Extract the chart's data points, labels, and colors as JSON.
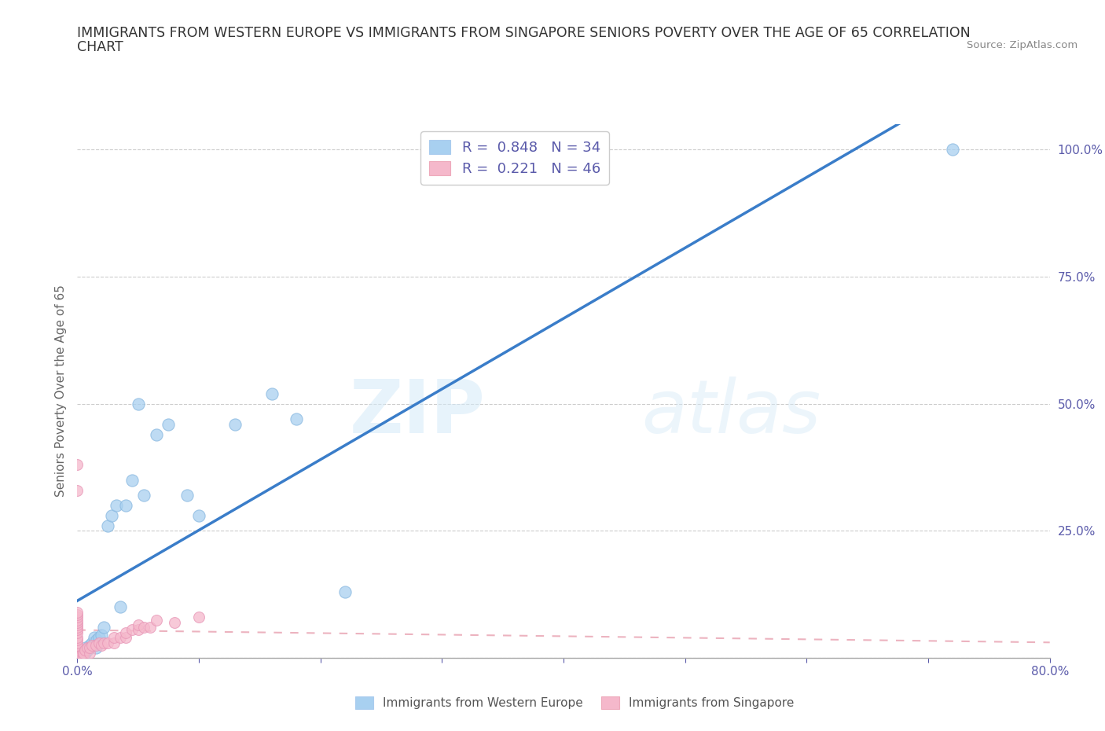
{
  "title_line1": "IMMIGRANTS FROM WESTERN EUROPE VS IMMIGRANTS FROM SINGAPORE SENIORS POVERTY OVER THE AGE OF 65 CORRELATION",
  "title_line2": "CHART",
  "source_text": "Source: ZipAtlas.com",
  "ylabel": "Seniors Poverty Over the Age of 65",
  "xlim": [
    0,
    0.8
  ],
  "ylim": [
    0,
    1.05
  ],
  "xtick_positions": [
    0.0,
    0.1,
    0.2,
    0.3,
    0.4,
    0.5,
    0.6,
    0.7,
    0.8
  ],
  "xticklabels": [
    "0.0%",
    "",
    "",
    "",
    "",
    "",
    "",
    "",
    "80.0%"
  ],
  "ytick_positions": [
    0.0,
    0.25,
    0.5,
    0.75,
    1.0
  ],
  "yticklabels": [
    "",
    "25.0%",
    "50.0%",
    "75.0%",
    "100.0%"
  ],
  "watermark_zip": "ZIP",
  "watermark_atlas": "atlas",
  "legend_label1": "R =  0.848   N = 34",
  "legend_label2": "R =  0.221   N = 46",
  "blue_color": "#a8d0f0",
  "pink_color": "#f5b8cb",
  "line_blue_color": "#3a7dc9",
  "line_pink_color": "#e8a0b0",
  "grid_color": "#cccccc",
  "background_color": "#ffffff",
  "title_fontsize": 12.5,
  "tick_fontsize": 11,
  "tick_color": "#5a5aaa",
  "western_europe_x": [
    0.0,
    0.0,
    0.0,
    0.002,
    0.003,
    0.005,
    0.006,
    0.007,
    0.008,
    0.01,
    0.012,
    0.014,
    0.015,
    0.016,
    0.018,
    0.02,
    0.022,
    0.025,
    0.028,
    0.032,
    0.035,
    0.04,
    0.045,
    0.05,
    0.055,
    0.065,
    0.075,
    0.09,
    0.1,
    0.13,
    0.16,
    0.18,
    0.22,
    0.72
  ],
  "western_europe_y": [
    0.005,
    0.01,
    0.02,
    0.005,
    0.015,
    0.005,
    0.01,
    0.02,
    0.015,
    0.025,
    0.03,
    0.04,
    0.02,
    0.035,
    0.04,
    0.045,
    0.06,
    0.26,
    0.28,
    0.3,
    0.1,
    0.3,
    0.35,
    0.5,
    0.32,
    0.44,
    0.46,
    0.32,
    0.28,
    0.46,
    0.52,
    0.47,
    0.13,
    1.0
  ],
  "singapore_x": [
    0.0,
    0.0,
    0.0,
    0.0,
    0.0,
    0.0,
    0.0,
    0.0,
    0.0,
    0.0,
    0.0,
    0.0,
    0.0,
    0.0,
    0.0,
    0.0,
    0.0,
    0.0,
    0.0,
    0.0,
    0.003,
    0.005,
    0.005,
    0.006,
    0.008,
    0.01,
    0.01,
    0.012,
    0.015,
    0.018,
    0.02,
    0.022,
    0.025,
    0.03,
    0.03,
    0.035,
    0.04,
    0.04,
    0.045,
    0.05,
    0.05,
    0.055,
    0.06,
    0.065,
    0.08,
    0.1
  ],
  "singapore_y": [
    0.005,
    0.008,
    0.01,
    0.015,
    0.02,
    0.025,
    0.03,
    0.035,
    0.04,
    0.05,
    0.055,
    0.06,
    0.065,
    0.07,
    0.075,
    0.08,
    0.085,
    0.09,
    0.33,
    0.38,
    0.005,
    0.005,
    0.01,
    0.015,
    0.02,
    0.01,
    0.02,
    0.025,
    0.025,
    0.03,
    0.025,
    0.03,
    0.03,
    0.03,
    0.04,
    0.04,
    0.04,
    0.05,
    0.055,
    0.055,
    0.065,
    0.06,
    0.06,
    0.075,
    0.07,
    0.08
  ],
  "bottom_legend_label1": "Immigrants from Western Europe",
  "bottom_legend_label2": "Immigrants from Singapore"
}
